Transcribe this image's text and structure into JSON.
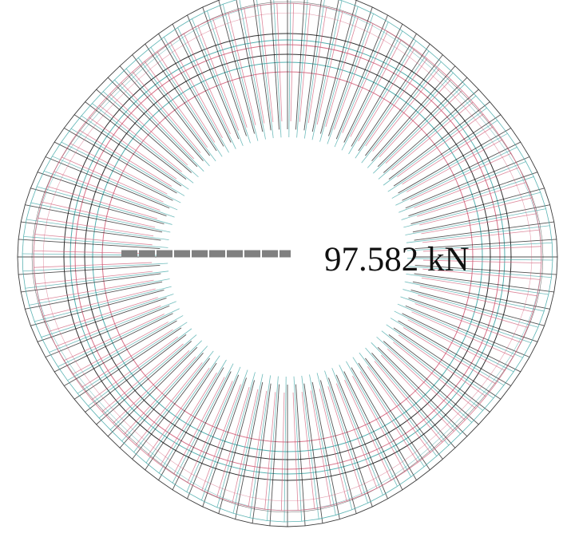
{
  "scale_label": "97.582 kN",
  "colors": {
    "background": "#ffffff",
    "series_black": "#1a1a1a",
    "series_teal": "#3fa6a6",
    "series_pink": "#d2607a",
    "scale_bar": "#808080",
    "text": "#111111"
  }
}
